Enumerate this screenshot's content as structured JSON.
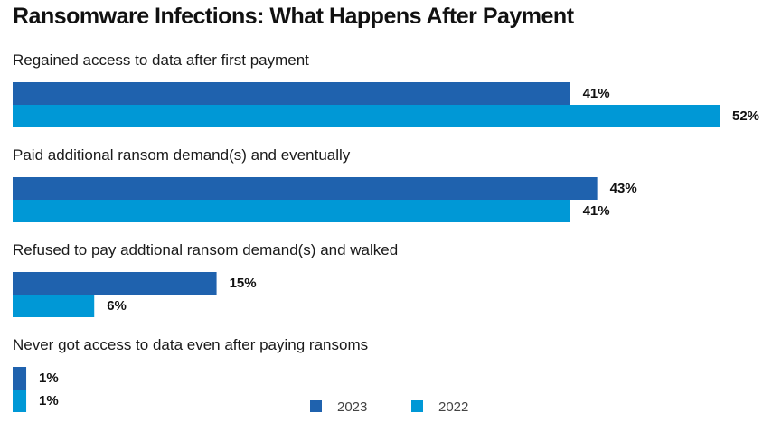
{
  "chart_data": {
    "type": "bar",
    "orientation": "horizontal",
    "title": "Ransomware Infections: What Happens After Payment",
    "categories": [
      "Regained access to data after first payment",
      "Paid additional ransom demand(s) and eventually",
      "Refused to pay addtional ransom demand(s) and walked",
      "Never got access to data even after paying ransoms"
    ],
    "series": [
      {
        "name": "2023",
        "color": "#1f62ae",
        "values": [
          41,
          43,
          15,
          1
        ],
        "labels": [
          "41%",
          "43%",
          "15%",
          "1%"
        ]
      },
      {
        "name": "2022",
        "color": "#0098d6",
        "values": [
          52,
          41,
          6,
          1
        ],
        "labels": [
          "52%",
          "41%",
          "6%",
          "1%"
        ]
      }
    ],
    "value_unit": "%",
    "xlim": [
      0,
      52
    ],
    "grid": false,
    "legend_position": "bottom-center"
  }
}
